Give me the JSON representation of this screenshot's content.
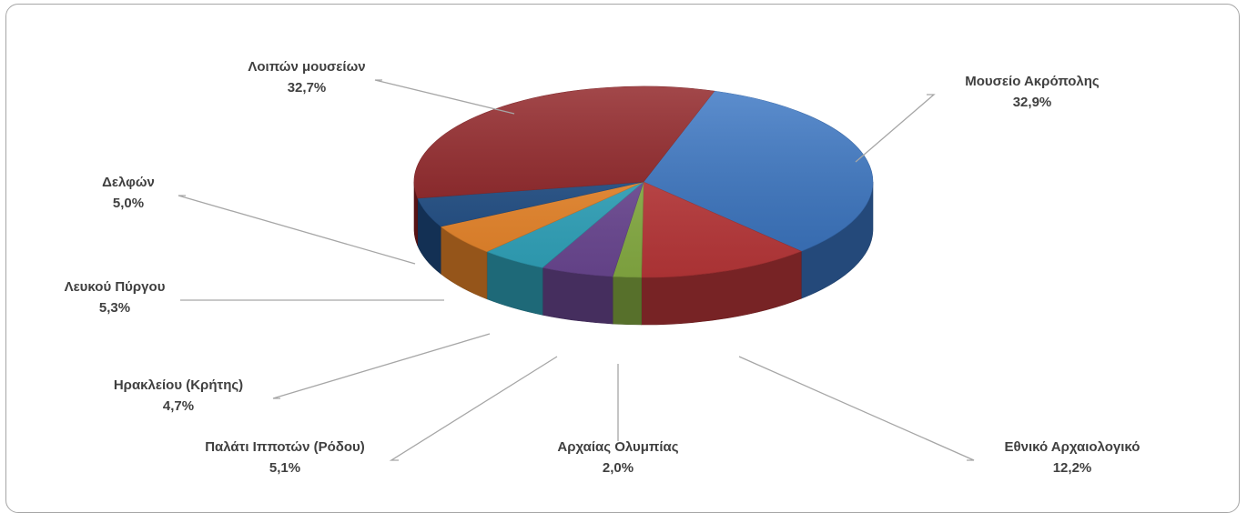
{
  "chart_data": {
    "type": "pie",
    "style": "3d-exploded-perspective",
    "slices": [
      {
        "name": "Μουσείο Ακρόπολης",
        "value": 32.9,
        "pct_label": "32,9%",
        "color": "#3a76c4"
      },
      {
        "name": "Εθνικό Αρχαιολογικό",
        "value": 12.2,
        "pct_label": "12,2%",
        "color": "#c0393b"
      },
      {
        "name": "Αρχαίας Ολυμπίας",
        "value": 2.0,
        "pct_label": "2,0%",
        "color": "#8cb446"
      },
      {
        "name": "Παλάτι Ιπποτών (Ρόδου)",
        "value": 5.1,
        "pct_label": "5,1%",
        "color": "#6f4a98"
      },
      {
        "name": "Ηρακλείου (Κρήτης)",
        "value": 4.7,
        "pct_label": "4,7%",
        "color": "#31a9c2"
      },
      {
        "name": "Λευκού Πύργου",
        "value": 5.3,
        "pct_label": "5,3%",
        "color": "#f0892a"
      },
      {
        "name": "Δελφών",
        "value": 5.0,
        "pct_label": "5,0%",
        "color": "#1f4e87"
      },
      {
        "name": "Λοιπών μουσείων",
        "value": 32.7,
        "pct_label": "32,7%",
        "color": "#8e1f22"
      }
    ],
    "legend": "none",
    "labels": "outside-with-leader-lines"
  }
}
